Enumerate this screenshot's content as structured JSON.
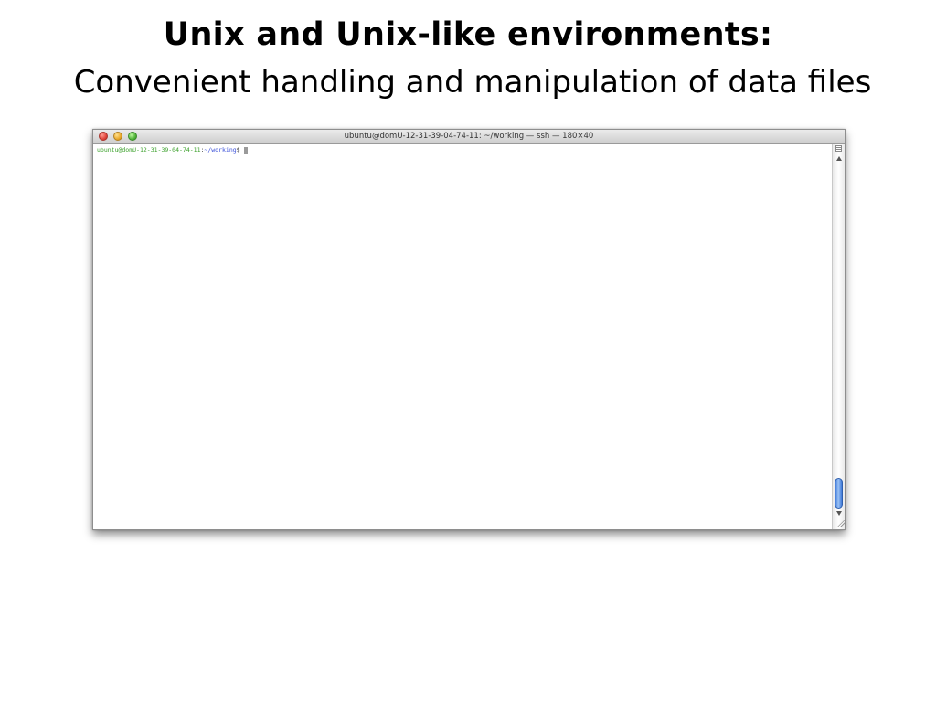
{
  "slide": {
    "title_bold": "Unix and Unix-like environments:",
    "title_sub": "Convenient handling and manipulation of data files"
  },
  "terminal": {
    "window_title": "ubuntu@domU-12-31-39-04-74-11: ~/working — ssh — 180×40",
    "prompt": {
      "user_host": "ubuntu@domU-12-31-39-04-74-11",
      "separator": ":",
      "path": "~/working",
      "symbol": "$"
    },
    "icons": {
      "close": "close-traffic-light-icon",
      "minimize": "minimize-traffic-light-icon",
      "zoom": "zoom-traffic-light-icon",
      "scroll_up": "arrow-up-icon",
      "scroll_down": "arrow-down-icon",
      "resize": "resize-grip-icon",
      "split": "split-pane-icon"
    },
    "colors": {
      "user_host": "#3aa02a",
      "path": "#3a4fd8",
      "scroll_thumb": "#3f79d8",
      "close": "#e0443a",
      "minimize": "#e9a82a",
      "zoom": "#52b43a"
    }
  }
}
